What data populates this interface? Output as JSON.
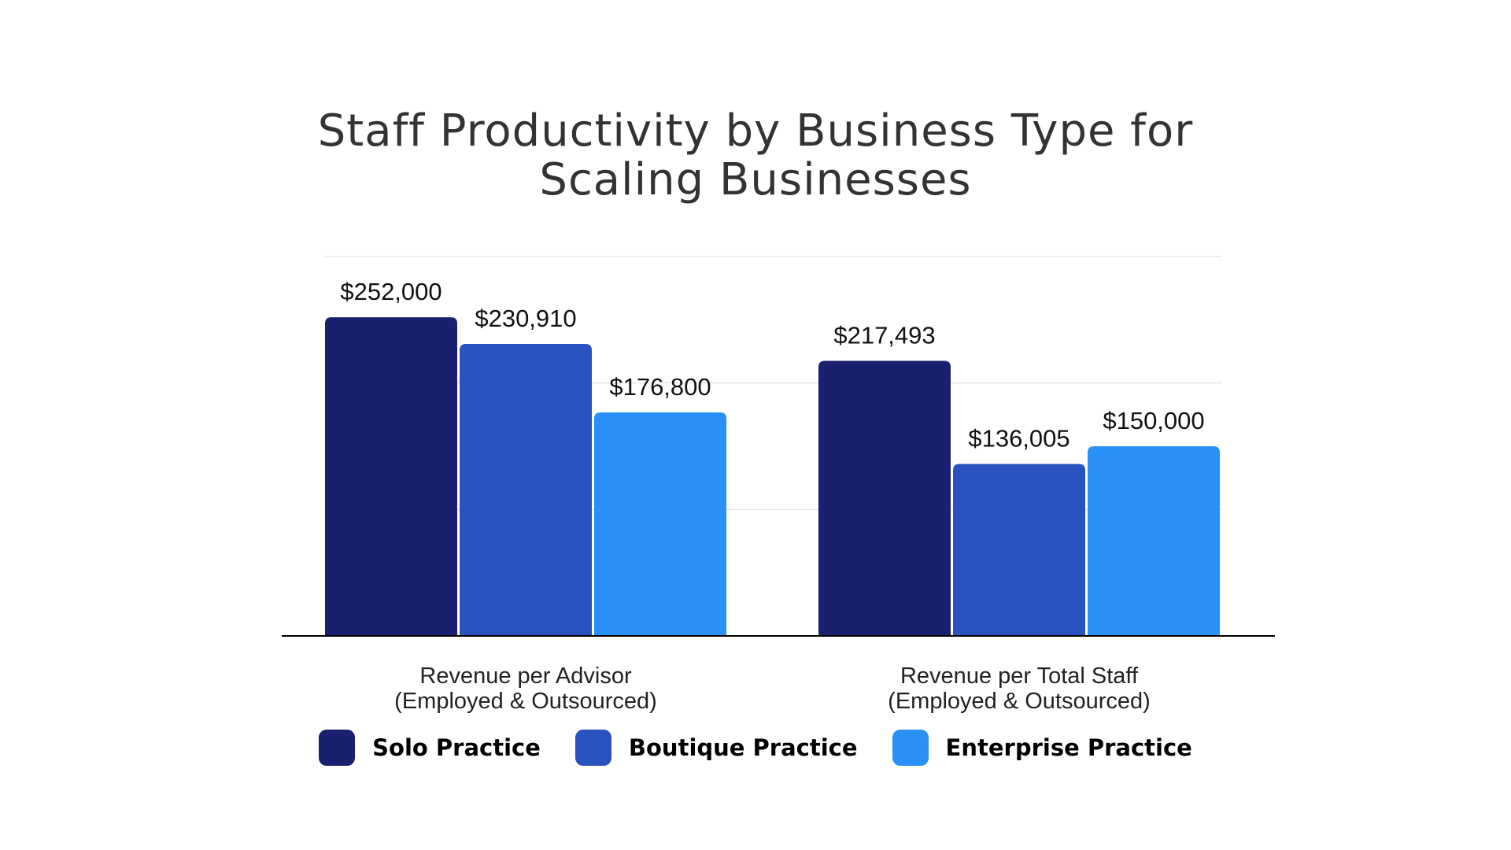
{
  "chart_data": {
    "type": "bar",
    "title": "Staff Productivity by Business Type for Scaling Businesses",
    "title_lines": [
      "Staff Productivity by Business Type for",
      "Scaling Businesses"
    ],
    "categories": [
      [
        "Revenue per Advisor",
        "(Employed & Outsourced)"
      ],
      [
        "Revenue per Total Staff",
        "(Employed & Outsourced)"
      ]
    ],
    "series": [
      {
        "name": "Solo Practice",
        "color": "#19206F",
        "values": [
          252000,
          217493
        ],
        "labels": [
          "$252,000",
          "$217,493"
        ]
      },
      {
        "name": "Boutique Practice",
        "color": "#2A52BE",
        "values": [
          230910,
          136005
        ],
        "labels": [
          "$230,910",
          "$136,005"
        ]
      },
      {
        "name": "Enterprise Practice",
        "color": "#2990F8",
        "values": [
          176800,
          150000
        ],
        "labels": [
          "$176,800",
          "$150,000"
        ]
      }
    ],
    "ylim": [
      0,
      300000
    ],
    "gridlines": [
      100000,
      200000,
      300000
    ],
    "grid": true,
    "legend": "bottom",
    "xlabel": "",
    "ylabel": ""
  }
}
